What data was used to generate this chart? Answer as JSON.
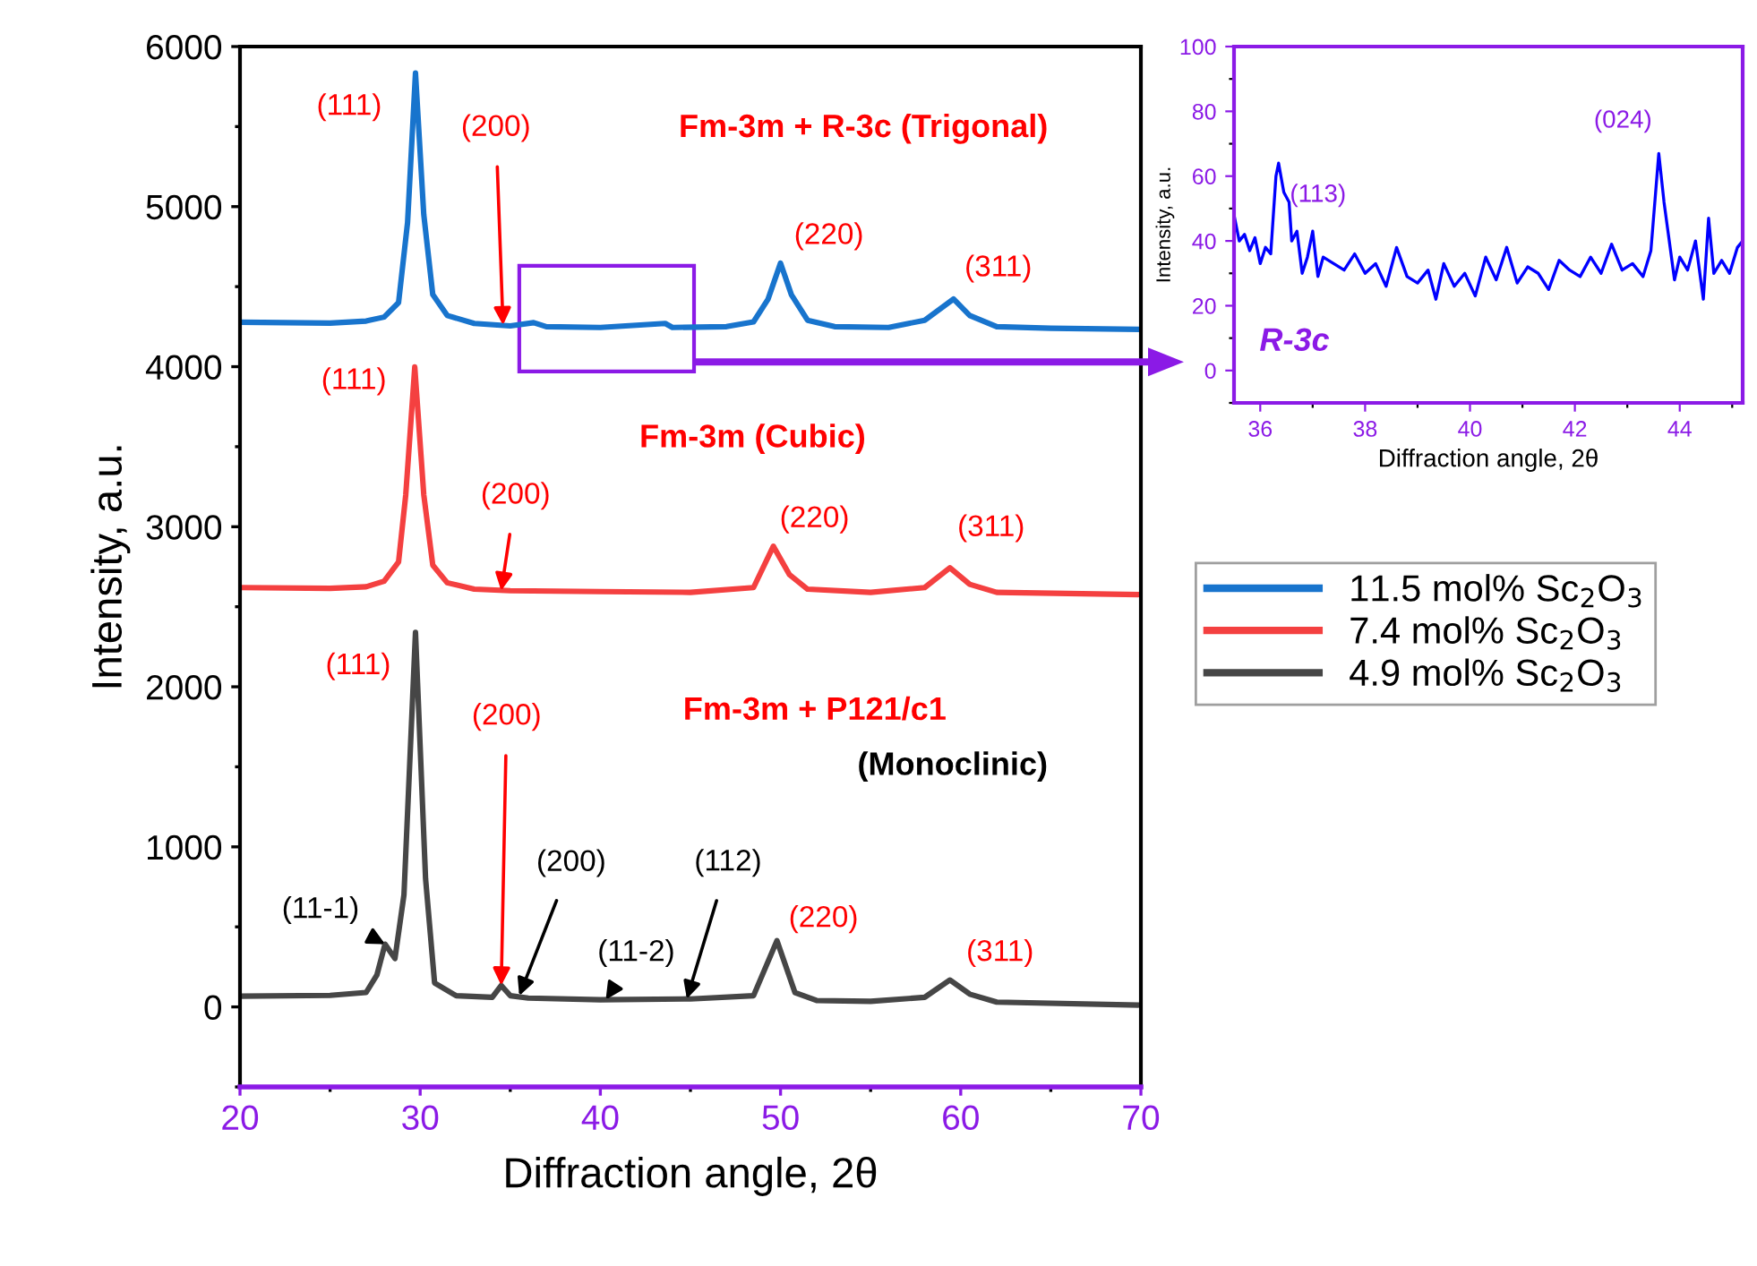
{
  "chart_data": [
    {
      "type": "line",
      "xlabel": "Diffraction angle, 2θ",
      "ylabel": "Intensity, a.u.",
      "xlim": [
        20,
        70
      ],
      "ylim": [
        -500,
        6000
      ],
      "xticks": [
        20,
        30,
        40,
        50,
        60,
        70
      ],
      "yticks": [
        0,
        1000,
        2000,
        3000,
        4000,
        5000,
        6000
      ],
      "grid": false,
      "legend": "right",
      "marker": "none",
      "line_style": "solid",
      "series": [
        {
          "name": "11.5 mol% Sc$_{2}$O$_{3}$",
          "color": "#1874cd",
          "x": [
            20,
            25,
            27,
            28,
            28.8,
            29.3,
            29.74,
            30.2,
            30.7,
            31.5,
            33,
            35,
            36.3,
            37,
            40,
            43.6,
            44,
            47,
            48.5,
            49.3,
            50.0,
            50.6,
            51.5,
            53,
            56,
            58,
            59.6,
            60.5,
            62,
            65,
            70
          ],
          "values": [
            4278,
            4272,
            4285,
            4310,
            4400,
            4900,
            5834,
            4950,
            4450,
            4320,
            4270,
            4255,
            4275,
            4250,
            4245,
            4270,
            4245,
            4250,
            4280,
            4420,
            4647,
            4450,
            4290,
            4250,
            4245,
            4290,
            4423,
            4320,
            4250,
            4240,
            4233
          ]
        },
        {
          "name": "7.4 mol% Sc$_{2}$O$_{3}$",
          "color": "#f44040",
          "x": [
            20,
            25,
            27,
            28,
            28.8,
            29.2,
            29.7,
            30.2,
            30.7,
            31.5,
            33,
            35,
            40,
            45,
            48.5,
            49.6,
            50.5,
            51.5,
            55,
            58,
            59.4,
            60.5,
            62,
            70
          ],
          "values": [
            2620,
            2615,
            2625,
            2660,
            2780,
            3200,
            3998,
            3200,
            2760,
            2650,
            2610,
            2600,
            2595,
            2590,
            2620,
            2878,
            2700,
            2610,
            2590,
            2620,
            2744,
            2640,
            2590,
            2576
          ]
        },
        {
          "name": "4.9 mol% Sc$_{2}$O$_{3}$",
          "color": "#464646",
          "x": [
            20,
            25,
            27,
            27.6,
            28.05,
            28.6,
            29.1,
            29.74,
            30.3,
            30.8,
            32,
            34,
            34.5,
            35,
            36,
            40,
            45,
            48.5,
            49.8,
            50.8,
            52,
            55,
            58,
            59.4,
            60.5,
            62,
            70
          ],
          "values": [
            67,
            72,
            90,
            200,
            392,
            302,
            700,
            2340,
            800,
            150,
            70,
            60,
            134,
            70,
            55,
            45,
            50,
            70,
            414,
            90,
            40,
            35,
            60,
            168,
            80,
            30,
            11
          ]
        }
      ],
      "annotations": [
        "Fm-3m + R-3c (Trigonal)",
        "Fm-3m (Cubic)",
        "Fm-3m + P121/c1",
        "(Monoclinic)",
        {
          "text": "(111)",
          "x": 29.74,
          "y": 5834
        },
        {
          "text": "(200)",
          "x": 34.6,
          "y": 4260
        },
        {
          "text": "(220)",
          "x": 50.0,
          "y": 4647
        },
        {
          "text": "(311)",
          "x": 59.6,
          "y": 4423
        },
        {
          "text": "(111)",
          "x": 29.7,
          "y": 3998
        },
        {
          "text": "(200)",
          "x": 34.5,
          "y": 2600
        },
        {
          "text": "(220)",
          "x": 49.6,
          "y": 2878
        },
        {
          "text": "(311)",
          "x": 59.4,
          "y": 2744
        },
        {
          "text": "(111)",
          "x": 29.74,
          "y": 2340
        },
        {
          "text": "(200)",
          "x": 34.5,
          "y": 134
        },
        {
          "text": "(11-1)",
          "x": 28.05,
          "y": 392
        },
        {
          "text": "(200)",
          "x": 35.5,
          "y": 70
        },
        {
          "text": "(11-2)",
          "x": 40.3,
          "y": 45
        },
        {
          "text": "(112)",
          "x": 44.8,
          "y": 50
        },
        {
          "text": "(220)",
          "x": 49.8,
          "y": 414
        },
        {
          "text": "(311)",
          "x": 59.4,
          "y": 168
        }
      ]
    },
    {
      "type": "line",
      "xlabel": "Diffraction angle, 2θ",
      "ylabel": "Intensity, a.u.",
      "xlim": [
        35.5,
        45.2
      ],
      "ylim": [
        -10,
        100
      ],
      "xticks": [
        36,
        38,
        40,
        42,
        44
      ],
      "yticks": [
        0,
        20,
        40,
        60,
        80,
        100
      ],
      "grid": false,
      "marker": "none",
      "line_style": "solid",
      "series": [
        {
          "color": "#0000ff",
          "x": [
            35.5,
            35.6,
            35.7,
            35.8,
            35.9,
            36.0,
            36.1,
            36.2,
            36.3,
            36.35,
            36.45,
            36.55,
            36.6,
            36.7,
            36.8,
            36.9,
            37.0,
            37.1,
            37.2,
            37.4,
            37.6,
            37.8,
            38.0,
            38.2,
            38.4,
            38.6,
            38.8,
            39.0,
            39.2,
            39.35,
            39.5,
            39.7,
            39.9,
            40.1,
            40.3,
            40.5,
            40.7,
            40.9,
            41.1,
            41.3,
            41.5,
            41.7,
            41.9,
            42.1,
            42.3,
            42.5,
            42.7,
            42.9,
            43.1,
            43.3,
            43.45,
            43.6,
            43.7,
            43.8,
            43.9,
            44.0,
            44.15,
            44.3,
            44.45,
            44.55,
            44.65,
            44.8,
            44.95,
            45.1,
            45.2
          ],
          "values": [
            48,
            40,
            42,
            37,
            41,
            33,
            38,
            36,
            60,
            64,
            55,
            52,
            40,
            43,
            30,
            35,
            43,
            29,
            35,
            33,
            31,
            36,
            30,
            33,
            26,
            38,
            29,
            27,
            31,
            22,
            33,
            26,
            30,
            23,
            35,
            28,
            38,
            27,
            32,
            30,
            25,
            34,
            31,
            29,
            35,
            30,
            39,
            31,
            33,
            29,
            37,
            67,
            52,
            40,
            28,
            35,
            31,
            40,
            22,
            47,
            30,
            34,
            30,
            38,
            40
          ]
        }
      ],
      "annotations": [
        {
          "text": "(113)",
          "x": 36.35,
          "y": 64
        },
        {
          "text": "(024)",
          "x": 43.6,
          "y": 67
        },
        "R-3c"
      ]
    }
  ]
}
